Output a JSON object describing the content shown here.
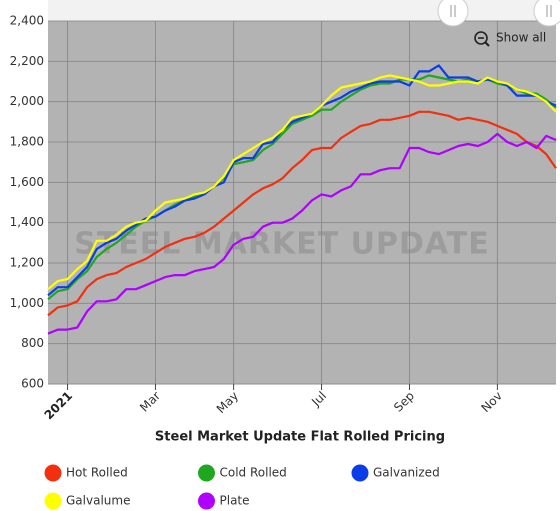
{
  "chart_data": {
    "type": "line",
    "title": "Steel Market Update Flat Rolled Pricing",
    "watermark": "STEEL MARKET UPDATE",
    "reset_button": "Show all",
    "categories": [
      null,
      null,
      "2021",
      null,
      null,
      null,
      null,
      null,
      null,
      null,
      null,
      "Mar",
      null,
      null,
      null,
      null,
      null,
      null,
      null,
      "May",
      null,
      null,
      null,
      null,
      null,
      null,
      null,
      null,
      "Jul",
      null,
      null,
      null,
      null,
      null,
      null,
      null,
      null,
      "Sep",
      null,
      null,
      null,
      null,
      null,
      null,
      null,
      null,
      "Nov",
      null,
      null,
      null,
      null,
      null,
      null
    ],
    "ylim": [
      600,
      2400
    ],
    "yticks": [
      600,
      800,
      {
        "value": 1000,
        "label": "1,000"
      },
      {
        "value": 1200,
        "label": "1,200"
      },
      {
        "value": 1400,
        "label": "1,400"
      },
      {
        "value": 1600,
        "label": "1,600"
      },
      {
        "value": 1800,
        "label": "1,800"
      },
      {
        "value": 2000,
        "label": "2,000"
      },
      {
        "value": 2200,
        "label": "2,200"
      },
      {
        "value": 2400,
        "label": "2,400"
      }
    ],
    "grid": true,
    "legend": "bottom",
    "series": [
      {
        "name": "Hot Rolled",
        "color": "#f2300f",
        "values": [
          940,
          980,
          990,
          1010,
          1080,
          1120,
          1140,
          1150,
          1180,
          1200,
          1220,
          1250,
          1280,
          1300,
          1320,
          1330,
          1350,
          1380,
          1420,
          1460,
          1500,
          1540,
          1570,
          1590,
          1620,
          1670,
          1710,
          1760,
          1770,
          1770,
          1820,
          1850,
          1880,
          1890,
          1910,
          1910,
          1920,
          1930,
          1950,
          1950,
          1940,
          1930,
          1910,
          1920,
          1910,
          1900,
          1880,
          1860,
          1840,
          1800,
          1780,
          1740,
          1670
        ]
      },
      {
        "name": "Cold Rolled",
        "color": "#1fa81f",
        "values": [
          1020,
          1060,
          1070,
          1120,
          1160,
          1230,
          1270,
          1300,
          1340,
          1380,
          1410,
          1430,
          1460,
          1490,
          1510,
          1530,
          1550,
          1580,
          1620,
          1690,
          1700,
          1710,
          1760,
          1790,
          1840,
          1890,
          1910,
          1930,
          1960,
          1960,
          2000,
          2030,
          2060,
          2080,
          2090,
          2090,
          2110,
          2110,
          2110,
          2130,
          2120,
          2110,
          2100,
          2110,
          2100,
          2110,
          2090,
          2080,
          2060,
          2040,
          2040,
          2010,
          1970
        ]
      },
      {
        "name": "Galvanized",
        "color": "#0b3de8",
        "values": [
          1040,
          1080,
          1080,
          1130,
          1180,
          1270,
          1300,
          1320,
          1360,
          1390,
          1420,
          1430,
          1460,
          1480,
          1510,
          1520,
          1540,
          1580,
          1600,
          1700,
          1720,
          1720,
          1790,
          1800,
          1860,
          1900,
          1920,
          1940,
          1980,
          2000,
          2020,
          2050,
          2070,
          2090,
          2100,
          2100,
          2100,
          2080,
          2150,
          2150,
          2180,
          2120,
          2120,
          2120,
          2100,
          2110,
          2100,
          2080,
          2030,
          2030,
          2030,
          2000,
          1980
        ]
      },
      {
        "name": "Galvalume",
        "color": "#ffff00",
        "values": [
          1070,
          1110,
          1120,
          1170,
          1210,
          1310,
          1310,
          1340,
          1380,
          1400,
          1410,
          1460,
          1500,
          1510,
          1520,
          1540,
          1550,
          1580,
          1630,
          1710,
          1740,
          1770,
          1800,
          1820,
          1860,
          1920,
          1930,
          1940,
          1980,
          2030,
          2070,
          2080,
          2090,
          2100,
          2120,
          2130,
          2120,
          2110,
          2100,
          2080,
          2080,
          2090,
          2100,
          2100,
          2090,
          2120,
          2100,
          2090,
          2060,
          2050,
          2030,
          2000,
          1950
        ]
      },
      {
        "name": "Plate",
        "color": "#b000ff",
        "values": [
          850,
          870,
          870,
          880,
          960,
          1010,
          1010,
          1020,
          1070,
          1070,
          1090,
          1110,
          1130,
          1140,
          1140,
          1160,
          1170,
          1180,
          1220,
          1290,
          1320,
          1330,
          1380,
          1400,
          1400,
          1420,
          1460,
          1510,
          1540,
          1530,
          1560,
          1580,
          1640,
          1640,
          1660,
          1670,
          1670,
          1770,
          1770,
          1750,
          1740,
          1760,
          1780,
          1790,
          1780,
          1800,
          1840,
          1800,
          1780,
          1800,
          1770,
          1830,
          1810
        ]
      }
    ]
  }
}
